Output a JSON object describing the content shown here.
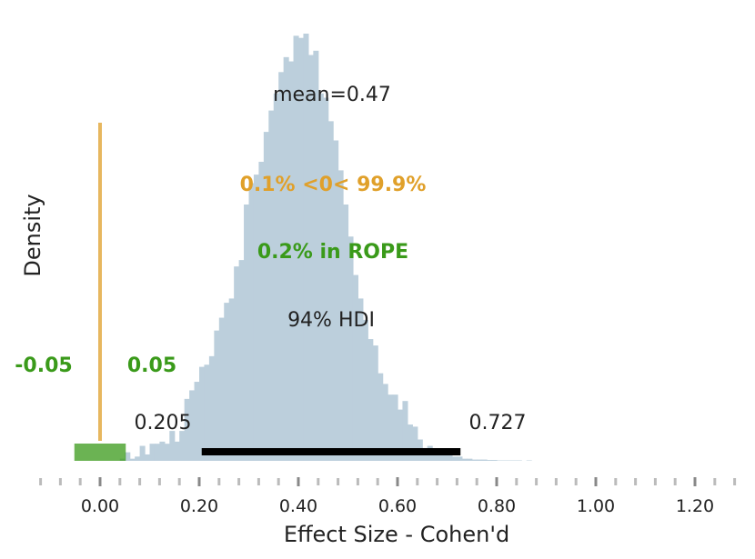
{
  "chart_data": {
    "type": "bar",
    "xlabel": "Effect Size - Cohen'd",
    "ylabel": "Density",
    "xlim": [
      -0.08,
      1.3
    ],
    "x_ticks": [
      "0.00",
      "0.20",
      "0.40",
      "0.60",
      "0.80",
      "1.00",
      "1.20"
    ],
    "x_tick_values": [
      0.0,
      0.2,
      0.4,
      0.6,
      0.8,
      1.0,
      1.2
    ],
    "grid": false,
    "histogram": {
      "bin_start": 0.04,
      "bin_width": 0.01,
      "densities": [
        0.5,
        2.0,
        0.5,
        1.0,
        3.5,
        1.5,
        4.0,
        4.0,
        4.5,
        4.0,
        7.0,
        4.5,
        7.0,
        14.5,
        16.5,
        18.5,
        22.0,
        22.5,
        24.5,
        30.5,
        33.5,
        37.0,
        38.0,
        45.5,
        47.0,
        60.0,
        65.0,
        67.0,
        70.0,
        77.0,
        82.0,
        86.0,
        91.0,
        94.5,
        93.5,
        99.5,
        99.0,
        100.0,
        95.0,
        96.0,
        86.0,
        85.0,
        79.5,
        75.0,
        68.0,
        60.0,
        52.5,
        43.5,
        38.0,
        33.0,
        28.5,
        27.0,
        20.5,
        18.0,
        15.5,
        15.5,
        12.0,
        14.0,
        8.5,
        8.0,
        5.0,
        3.0,
        3.5,
        2.5,
        1.5,
        1.5,
        1.5,
        1.0,
        1.0,
        0.5,
        0.5,
        0.3,
        0.3,
        0.3,
        0.2,
        0.2,
        0.1,
        0.1,
        0.1,
        0.1,
        0.1,
        0.0,
        0.1
      ],
      "color": "#bccfdc"
    },
    "hdi": {
      "low": 0.205,
      "high": 0.727,
      "low_label": "0.205",
      "high_label": "0.727",
      "prob_label": "94% HDI",
      "color": "#000000"
    },
    "mean_label": "mean=0.47",
    "ref_val": {
      "value": 0.0,
      "label": "0.1% <0< 99.9%",
      "color": "#e0a02a"
    },
    "rope": {
      "low": -0.05,
      "high": 0.05,
      "low_label": "-0.05",
      "high_label": "0.05",
      "label": "0.2% in ROPE",
      "color": "#3a9a1a"
    }
  }
}
